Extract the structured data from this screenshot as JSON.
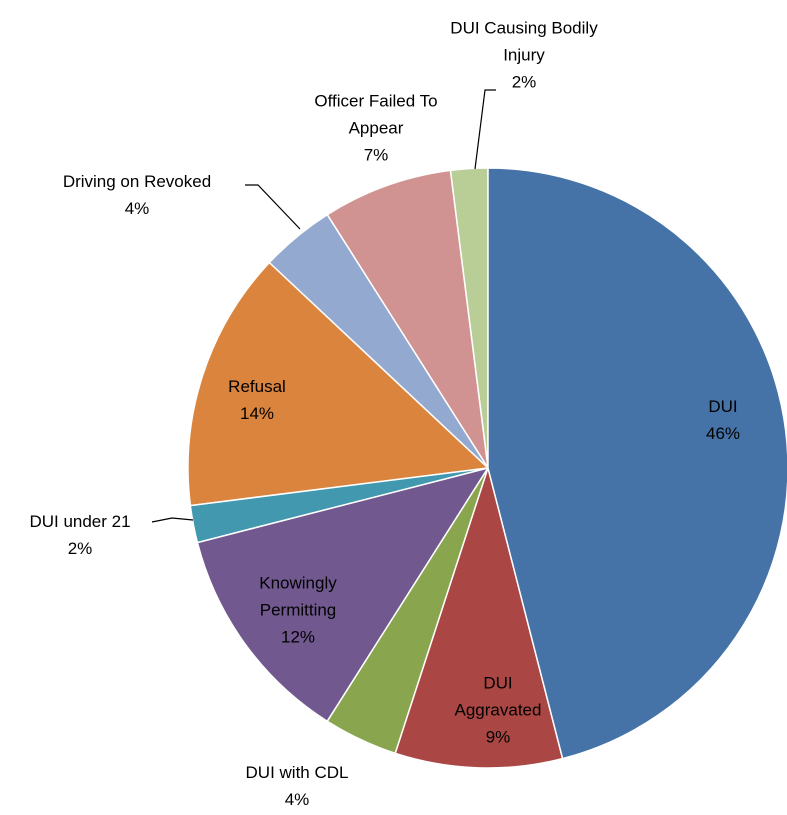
{
  "chart_data": {
    "type": "pie",
    "categories": [
      "DUI",
      "DUI Aggravated",
      "DUI with CDL",
      "Knowingly Permitting",
      "DUI under 21",
      "Refusal",
      "Driving on Revoked",
      "Officer Failed To Appear",
      "DUI Causing Bodily Injury"
    ],
    "values": [
      46,
      9,
      4,
      12,
      2,
      14,
      4,
      7,
      2
    ],
    "value_labels": [
      "46%",
      "9%",
      "4%",
      "12%",
      "2%",
      "14%",
      "4%",
      "7%",
      "2%"
    ],
    "colors": [
      "#4572a7",
      "#aa4643",
      "#89a54e",
      "#71588f",
      "#4198af",
      "#db843d",
      "#93a9cf",
      "#d19392",
      "#b9cd96"
    ]
  }
}
